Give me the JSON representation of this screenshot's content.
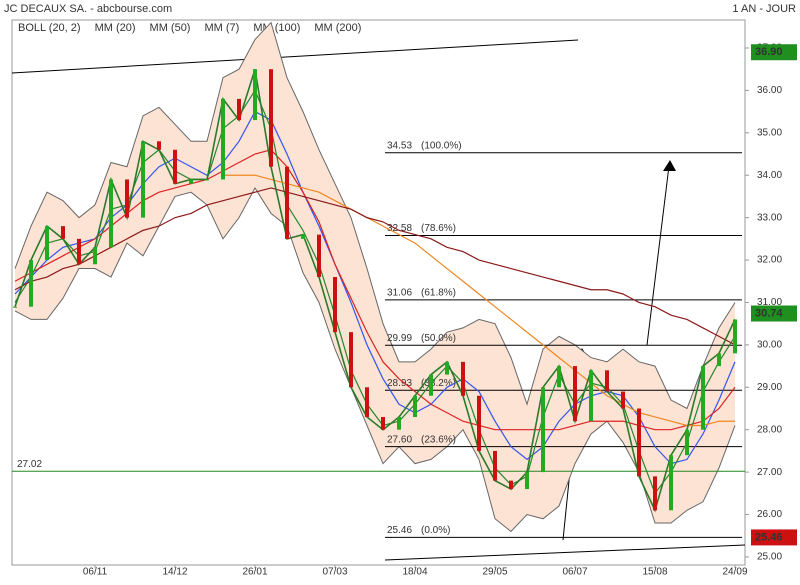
{
  "chart_data": {
    "type": "stock",
    "title": "JC DECAUX SA. - abcbourse.com",
    "period": "1 AN - JOUR",
    "categories": [
      null,
      null,
      null,
      null,
      null,
      "06/11",
      null,
      null,
      null,
      null,
      "14/12",
      null,
      null,
      null,
      null,
      "26/01",
      null,
      null,
      null,
      null,
      "07/03",
      null,
      null,
      null,
      null,
      "18/04",
      null,
      null,
      null,
      null,
      "29/05",
      null,
      null,
      null,
      null,
      "06/07",
      null,
      null,
      null,
      null,
      "15/08",
      null,
      null,
      null,
      null,
      "24/09"
    ],
    "ylim": [
      24.81,
      37.66
    ],
    "yticks": [
      {
        "value": 25,
        "label": "25.00"
      },
      {
        "value": 26,
        "label": "26.00"
      },
      {
        "value": 27,
        "label": "27.00"
      },
      {
        "value": 28,
        "label": "28.00"
      },
      {
        "value": 29,
        "label": "29.00"
      },
      {
        "value": 30,
        "label": "30.00"
      },
      {
        "value": 31,
        "label": "31.00"
      },
      {
        "value": 32,
        "label": "32.00"
      },
      {
        "value": 33,
        "label": "33.00"
      },
      {
        "value": 34,
        "label": "34.00"
      },
      {
        "value": 35,
        "label": "35.00"
      },
      {
        "value": 36,
        "label": "36.00"
      },
      {
        "value": 37,
        "label": "37.00"
      }
    ],
    "close": {
      "color": "#2a7a2a",
      "values": [
        30.9,
        32.0,
        32.8,
        32.5,
        31.9,
        32.3,
        33.9,
        33.0,
        34.8,
        34.6,
        33.8,
        33.9,
        33.9,
        35.8,
        35.3,
        36.5,
        34.2,
        32.5,
        32.6,
        31.6,
        30.3,
        29.0,
        28.3,
        28.0,
        28.3,
        28.8,
        29.3,
        29.6,
        28.8,
        27.5,
        26.8,
        26.6,
        27.0,
        29.0,
        29.5,
        28.2,
        29.4,
        28.9,
        28.5,
        26.9,
        26.1,
        27.4,
        28.0,
        29.5,
        29.8,
        30.6
      ]
    },
    "bollinger": {
      "name": "BOLL (20, 2)",
      "color": "#666666",
      "fill": "#fde3d3",
      "upper": [
        31.8,
        32.8,
        33.6,
        33.4,
        33.0,
        33.3,
        34.3,
        34.2,
        35.4,
        35.6,
        35.2,
        34.8,
        34.8,
        36.3,
        36.5,
        37.2,
        37.6,
        36.3,
        35.5,
        34.6,
        33.8,
        33.0,
        31.8,
        30.5,
        29.6,
        29.6,
        29.9,
        30.3,
        30.4,
        30.6,
        30.5,
        29.7,
        28.6,
        29.9,
        30.2,
        30.0,
        29.7,
        29.6,
        29.9,
        29.6,
        29.5,
        28.7,
        28.5,
        29.5,
        30.4,
        31.0
      ],
      "lower": [
        30.8,
        30.6,
        30.6,
        31.1,
        31.8,
        31.8,
        31.6,
        32.4,
        32.1,
        32.8,
        33.5,
        33.6,
        33.3,
        32.5,
        33.0,
        33.7,
        33.1,
        32.8,
        31.7,
        31.0,
        29.9,
        29.0,
        28.1,
        27.2,
        27.6,
        27.2,
        27.3,
        27.6,
        28.0,
        27.3,
        25.9,
        25.6,
        26.0,
        25.9,
        26.2,
        27.2,
        27.9,
        28.2,
        27.7,
        27.0,
        25.8,
        25.8,
        26.1,
        26.3,
        27.1,
        28.1
      ]
    },
    "series": [
      {
        "name": "MM (20)",
        "color": "#3355ee",
        "values": [
          31.2,
          31.6,
          32.0,
          32.3,
          32.4,
          32.5,
          33.0,
          33.3,
          33.8,
          34.2,
          34.4,
          34.2,
          34.0,
          34.3,
          34.8,
          35.5,
          35.3,
          34.5,
          33.6,
          32.8,
          31.9,
          31.0,
          30.0,
          29.2,
          28.6,
          28.4,
          28.6,
          29.0,
          29.2,
          28.9,
          28.2,
          27.6,
          27.3,
          27.6,
          28.2,
          28.6,
          28.8,
          28.9,
          28.8,
          28.3,
          27.6,
          27.2,
          27.3,
          27.9,
          28.7,
          29.6
        ]
      },
      {
        "name": "MM (50)",
        "color": "#dd2222",
        "values": [
          31.5,
          31.7,
          31.9,
          32.1,
          32.3,
          32.5,
          32.8,
          33.1,
          33.4,
          33.6,
          33.7,
          33.8,
          33.9,
          34.1,
          34.3,
          34.5,
          34.6,
          34.2,
          33.6,
          32.9,
          31.9,
          31.1,
          30.3,
          29.6,
          29.2,
          28.9,
          28.6,
          28.4,
          28.2,
          28.1,
          28.0,
          28.0,
          28.0,
          28.0,
          28.0,
          28.1,
          28.2,
          28.2,
          28.2,
          28.1,
          28.0,
          28.0,
          28.1,
          28.2,
          28.5,
          29.0
        ]
      },
      {
        "name": "MM (7)",
        "color": "#22882a",
        "values": [
          31.0,
          31.6,
          32.4,
          32.5,
          32.1,
          32.2,
          33.2,
          33.3,
          34.3,
          34.6,
          34.1,
          33.9,
          33.9,
          35.1,
          35.4,
          36.0,
          35.1,
          33.3,
          32.7,
          31.9,
          30.7,
          29.4,
          28.6,
          28.1,
          28.2,
          28.6,
          29.1,
          29.5,
          29.1,
          28.0,
          27.1,
          26.7,
          26.9,
          28.3,
          29.3,
          28.6,
          29.1,
          29.0,
          28.6,
          27.5,
          26.5,
          27.0,
          27.7,
          28.9,
          29.6,
          30.2
        ]
      },
      {
        "name": "MM (100)",
        "color": "#ee8822",
        "values": [
          null,
          null,
          null,
          null,
          null,
          null,
          null,
          null,
          null,
          null,
          null,
          null,
          null,
          34.0,
          34.0,
          34.0,
          33.9,
          33.8,
          33.7,
          33.6,
          33.4,
          33.2,
          33.0,
          32.8,
          32.6,
          32.4,
          32.1,
          31.8,
          31.5,
          31.2,
          30.9,
          30.6,
          30.3,
          30.0,
          29.7,
          29.4,
          29.1,
          28.8,
          28.6,
          28.4,
          28.3,
          28.2,
          28.1,
          28.1,
          28.2,
          28.2
        ]
      },
      {
        "name": "MM (200)",
        "color": "#8b1a1a",
        "values": [
          31.3,
          31.5,
          31.6,
          31.8,
          31.9,
          32.1,
          32.3,
          32.5,
          32.7,
          32.8,
          33.0,
          33.1,
          33.3,
          33.4,
          33.5,
          33.6,
          33.7,
          33.6,
          33.5,
          33.4,
          33.3,
          33.2,
          33.0,
          32.9,
          32.7,
          32.6,
          32.5,
          32.3,
          32.2,
          32.0,
          31.9,
          31.8,
          31.7,
          31.6,
          31.5,
          31.4,
          31.3,
          31.3,
          31.2,
          31.0,
          30.9,
          30.7,
          30.6,
          30.4,
          30.2,
          30.0
        ]
      }
    ],
    "fib_levels": [
      {
        "level": 34.53,
        "ratio": "(100.0%)"
      },
      {
        "level": 32.58,
        "ratio": "(78.6%)"
      },
      {
        "level": 31.06,
        "ratio": "(61.8%)"
      },
      {
        "level": 29.99,
        "ratio": "(50.0%)"
      },
      {
        "level": 28.93,
        "ratio": "(38.2%)"
      },
      {
        "level": {
          "value": 27.6,
          "label": "27.60"
        },
        "ratio": "(23.6%)"
      },
      {
        "level": 25.46,
        "ratio": "(0.0%)"
      }
    ],
    "support": {
      "value": 27.02,
      "label": "27.02",
      "color": "#228822"
    },
    "badges": [
      {
        "value": 36.9,
        "label": "36.90",
        "color": "#1f8f1f"
      },
      {
        "value": 30.74,
        "label": "30.74",
        "color": "#1f8f1f"
      },
      {
        "value": 25.46,
        "label": "25.46",
        "color": "#cc1111"
      }
    ]
  }
}
